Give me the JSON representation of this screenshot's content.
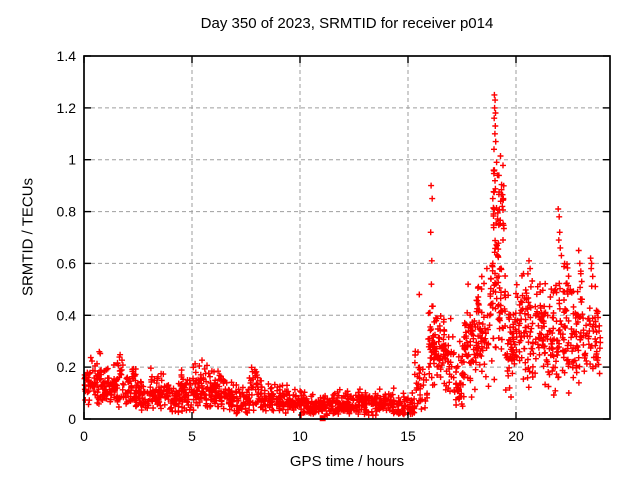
{
  "page": {
    "background": "#ffffff"
  },
  "chart_data": {
    "type": "scatter",
    "title": "Day 350 of 2023, SRMTID for receiver p014",
    "xlabel": "GPS time / hours",
    "ylabel": "SRMTID / TECUs",
    "xlim": [
      0,
      24.35
    ],
    "ylim": [
      0,
      1.4
    ],
    "xticks": [
      0,
      5,
      10,
      15,
      20
    ],
    "yticks": [
      0,
      0.2,
      0.4,
      0.6,
      0.8,
      1,
      1.2,
      1.4
    ],
    "ytick_labels": [
      "0",
      "0.2",
      "0.4",
      "0.6",
      "0.8",
      "1",
      "1.2",
      "1.4"
    ],
    "grid": {
      "show": true,
      "color": "#9e9e9e",
      "dash": "4,3"
    },
    "legend": {
      "show": false
    },
    "marker": {
      "glyph": "plus",
      "color": "#ff0000",
      "size": 7,
      "stroke_width": 1.4
    },
    "seed": 42,
    "density_segments": [
      {
        "t0": 0.02,
        "t1": 0.3,
        "n": 22,
        "mean": 0.13,
        "sd": 0.04,
        "min": 0.05,
        "max": 0.21
      },
      {
        "t0": 0.3,
        "t1": 0.85,
        "n": 48,
        "mean": 0.15,
        "sd": 0.05,
        "min": 0.05,
        "max": 0.29
      },
      {
        "t0": 0.85,
        "t1": 1.3,
        "n": 40,
        "mean": 0.12,
        "sd": 0.035,
        "min": 0.04,
        "max": 0.2
      },
      {
        "t0": 1.3,
        "t1": 1.8,
        "n": 45,
        "mean": 0.13,
        "sd": 0.05,
        "min": 0.04,
        "max": 0.28
      },
      {
        "t0": 1.8,
        "t1": 2.4,
        "n": 50,
        "mean": 0.12,
        "sd": 0.045,
        "min": 0.03,
        "max": 0.26
      },
      {
        "t0": 2.4,
        "t1": 3.0,
        "n": 50,
        "mean": 0.085,
        "sd": 0.03,
        "min": 0.02,
        "max": 0.17
      },
      {
        "t0": 3.0,
        "t1": 3.7,
        "n": 55,
        "mean": 0.095,
        "sd": 0.035,
        "min": 0.03,
        "max": 0.2
      },
      {
        "t0": 3.7,
        "t1": 4.4,
        "n": 55,
        "mean": 0.08,
        "sd": 0.03,
        "min": 0.02,
        "max": 0.16
      },
      {
        "t0": 4.4,
        "t1": 5.0,
        "n": 50,
        "mean": 0.1,
        "sd": 0.04,
        "min": 0.03,
        "max": 0.22
      },
      {
        "t0": 5.0,
        "t1": 5.9,
        "n": 75,
        "mean": 0.105,
        "sd": 0.045,
        "min": 0.03,
        "max": 0.25
      },
      {
        "t0": 5.9,
        "t1": 6.6,
        "n": 60,
        "mean": 0.1,
        "sd": 0.045,
        "min": 0.03,
        "max": 0.24
      },
      {
        "t0": 6.6,
        "t1": 7.6,
        "n": 75,
        "mean": 0.075,
        "sd": 0.03,
        "min": 0.02,
        "max": 0.16
      },
      {
        "t0": 7.6,
        "t1": 8.3,
        "n": 55,
        "mean": 0.1,
        "sd": 0.05,
        "min": 0.03,
        "max": 0.26
      },
      {
        "t0": 8.3,
        "t1": 9.4,
        "n": 80,
        "mean": 0.07,
        "sd": 0.028,
        "min": 0.02,
        "max": 0.16
      },
      {
        "t0": 9.4,
        "t1": 10.4,
        "n": 80,
        "mean": 0.06,
        "sd": 0.022,
        "min": 0.015,
        "max": 0.13
      },
      {
        "t0": 10.4,
        "t1": 11.4,
        "n": 80,
        "mean": 0.05,
        "sd": 0.02,
        "min": 0.01,
        "max": 0.11
      },
      {
        "t0": 11.4,
        "t1": 12.4,
        "n": 80,
        "mean": 0.055,
        "sd": 0.022,
        "min": 0.015,
        "max": 0.12
      },
      {
        "t0": 12.4,
        "t1": 13.4,
        "n": 80,
        "mean": 0.06,
        "sd": 0.025,
        "min": 0.01,
        "max": 0.14
      },
      {
        "t0": 13.4,
        "t1": 14.4,
        "n": 75,
        "mean": 0.06,
        "sd": 0.025,
        "min": 0.015,
        "max": 0.13
      },
      {
        "t0": 14.4,
        "t1": 15.3,
        "n": 60,
        "mean": 0.05,
        "sd": 0.025,
        "min": 0.015,
        "max": 0.12
      },
      {
        "t0": 15.3,
        "t1": 15.9,
        "n": 35,
        "mean": 0.12,
        "sd": 0.06,
        "min": 0.03,
        "max": 0.3
      },
      {
        "t0": 15.9,
        "t1": 16.5,
        "n": 65,
        "mean": 0.28,
        "sd": 0.08,
        "min": 0.1,
        "max": 0.47
      },
      {
        "t0": 16.5,
        "t1": 17.1,
        "n": 55,
        "mean": 0.24,
        "sd": 0.07,
        "min": 0.08,
        "max": 0.42
      },
      {
        "t0": 17.1,
        "t1": 17.6,
        "n": 40,
        "mean": 0.15,
        "sd": 0.06,
        "min": 0.04,
        "max": 0.3
      },
      {
        "t0": 17.6,
        "t1": 18.2,
        "n": 60,
        "mean": 0.27,
        "sd": 0.09,
        "min": 0.08,
        "max": 0.5
      },
      {
        "t0": 18.2,
        "t1": 18.8,
        "n": 55,
        "mean": 0.33,
        "sd": 0.1,
        "min": 0.1,
        "max": 0.55
      },
      {
        "t0": 18.8,
        "t1": 19.5,
        "n": 60,
        "mean": 0.42,
        "sd": 0.12,
        "min": 0.15,
        "max": 0.7
      },
      {
        "t0": 18.92,
        "t1": 19.45,
        "n": 55,
        "mean": 0.78,
        "sd": 0.13,
        "min": 0.55,
        "max": 1.02
      },
      {
        "t0": 19.5,
        "t1": 20.0,
        "n": 50,
        "mean": 0.28,
        "sd": 0.1,
        "min": 0.08,
        "max": 0.52
      },
      {
        "t0": 20.0,
        "t1": 20.7,
        "n": 65,
        "mean": 0.37,
        "sd": 0.09,
        "min": 0.06,
        "max": 0.56
      },
      {
        "t0": 20.7,
        "t1": 21.4,
        "n": 65,
        "mean": 0.34,
        "sd": 0.11,
        "min": 0.1,
        "max": 0.56
      },
      {
        "t0": 21.4,
        "t1": 22.0,
        "n": 55,
        "mean": 0.28,
        "sd": 0.11,
        "min": 0.08,
        "max": 0.52
      },
      {
        "t0": 22.0,
        "t1": 22.6,
        "n": 60,
        "mean": 0.38,
        "sd": 0.12,
        "min": 0.1,
        "max": 0.62
      },
      {
        "t0": 22.6,
        "t1": 23.3,
        "n": 60,
        "mean": 0.33,
        "sd": 0.11,
        "min": 0.12,
        "max": 0.58
      },
      {
        "t0": 23.3,
        "t1": 23.9,
        "n": 45,
        "mean": 0.3,
        "sd": 0.09,
        "min": 0.15,
        "max": 0.62
      }
    ],
    "outliers": [
      [
        0.05,
        0.16
      ],
      [
        0.05,
        0.13
      ],
      [
        15.52,
        0.48
      ],
      [
        16.07,
        0.9
      ],
      [
        16.12,
        0.85
      ],
      [
        16.05,
        0.72
      ],
      [
        16.1,
        0.61
      ],
      [
        16.08,
        0.52
      ],
      [
        17.78,
        0.52
      ],
      [
        18.65,
        0.58
      ],
      [
        19.0,
        1.25
      ],
      [
        19.03,
        1.23
      ],
      [
        19.01,
        1.2
      ],
      [
        19.05,
        1.18
      ],
      [
        18.99,
        1.16
      ],
      [
        19.04,
        1.13
      ],
      [
        19.02,
        1.1
      ],
      [
        19.06,
        1.07
      ],
      [
        18.98,
        1.04
      ],
      [
        19.1,
        0.99
      ],
      [
        19.0,
        0.96
      ],
      [
        19.14,
        0.94
      ],
      [
        20.6,
        0.61
      ],
      [
        20.65,
        0.58
      ],
      [
        20.55,
        0.56
      ],
      [
        21.95,
        0.81
      ],
      [
        22.0,
        0.78
      ],
      [
        22.02,
        0.72
      ],
      [
        21.98,
        0.69
      ],
      [
        22.05,
        0.66
      ],
      [
        22.1,
        0.63
      ],
      [
        22.9,
        0.65
      ],
      [
        22.95,
        0.6
      ],
      [
        23.0,
        0.57
      ],
      [
        23.45,
        0.62
      ],
      [
        23.5,
        0.6
      ],
      [
        23.48,
        0.58
      ],
      [
        23.55,
        0.55
      ],
      [
        13.15,
        0.025
      ],
      [
        13.18,
        0.015
      ]
    ],
    "square_points": [
      [
        11.05,
        0.003
      ]
    ]
  }
}
